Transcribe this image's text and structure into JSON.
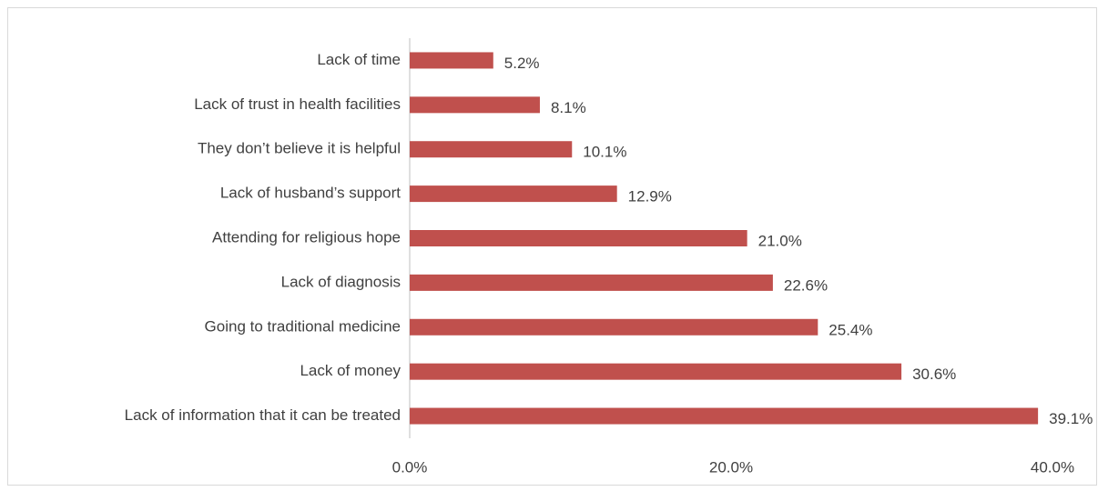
{
  "chart_data": {
    "type": "bar",
    "orientation": "horizontal",
    "categories": [
      "Lack of time",
      "Lack of trust in health facilities",
      "They don’t believe it is helpful",
      "Lack of husband’s support",
      "Attending for religious hope",
      "Lack of diagnosis",
      "Going to traditional medicine",
      "Lack of money",
      "Lack of information that it can be treated"
    ],
    "values": [
      5.2,
      8.1,
      10.1,
      12.9,
      21.0,
      22.6,
      25.4,
      30.6,
      39.1
    ],
    "value_labels": [
      "5.2%",
      "8.1%",
      "10.1%",
      "12.9%",
      "21.0%",
      "22.6%",
      "25.4%",
      "30.6%",
      "39.1%"
    ],
    "color": "#c0504d",
    "xlim": [
      0,
      40
    ],
    "xticks": [
      {
        "value": 0,
        "label": "0.0%"
      },
      {
        "value": 20,
        "label": "20.0%"
      },
      {
        "value": 40,
        "label": "40.0%"
      }
    ],
    "grid": false
  }
}
